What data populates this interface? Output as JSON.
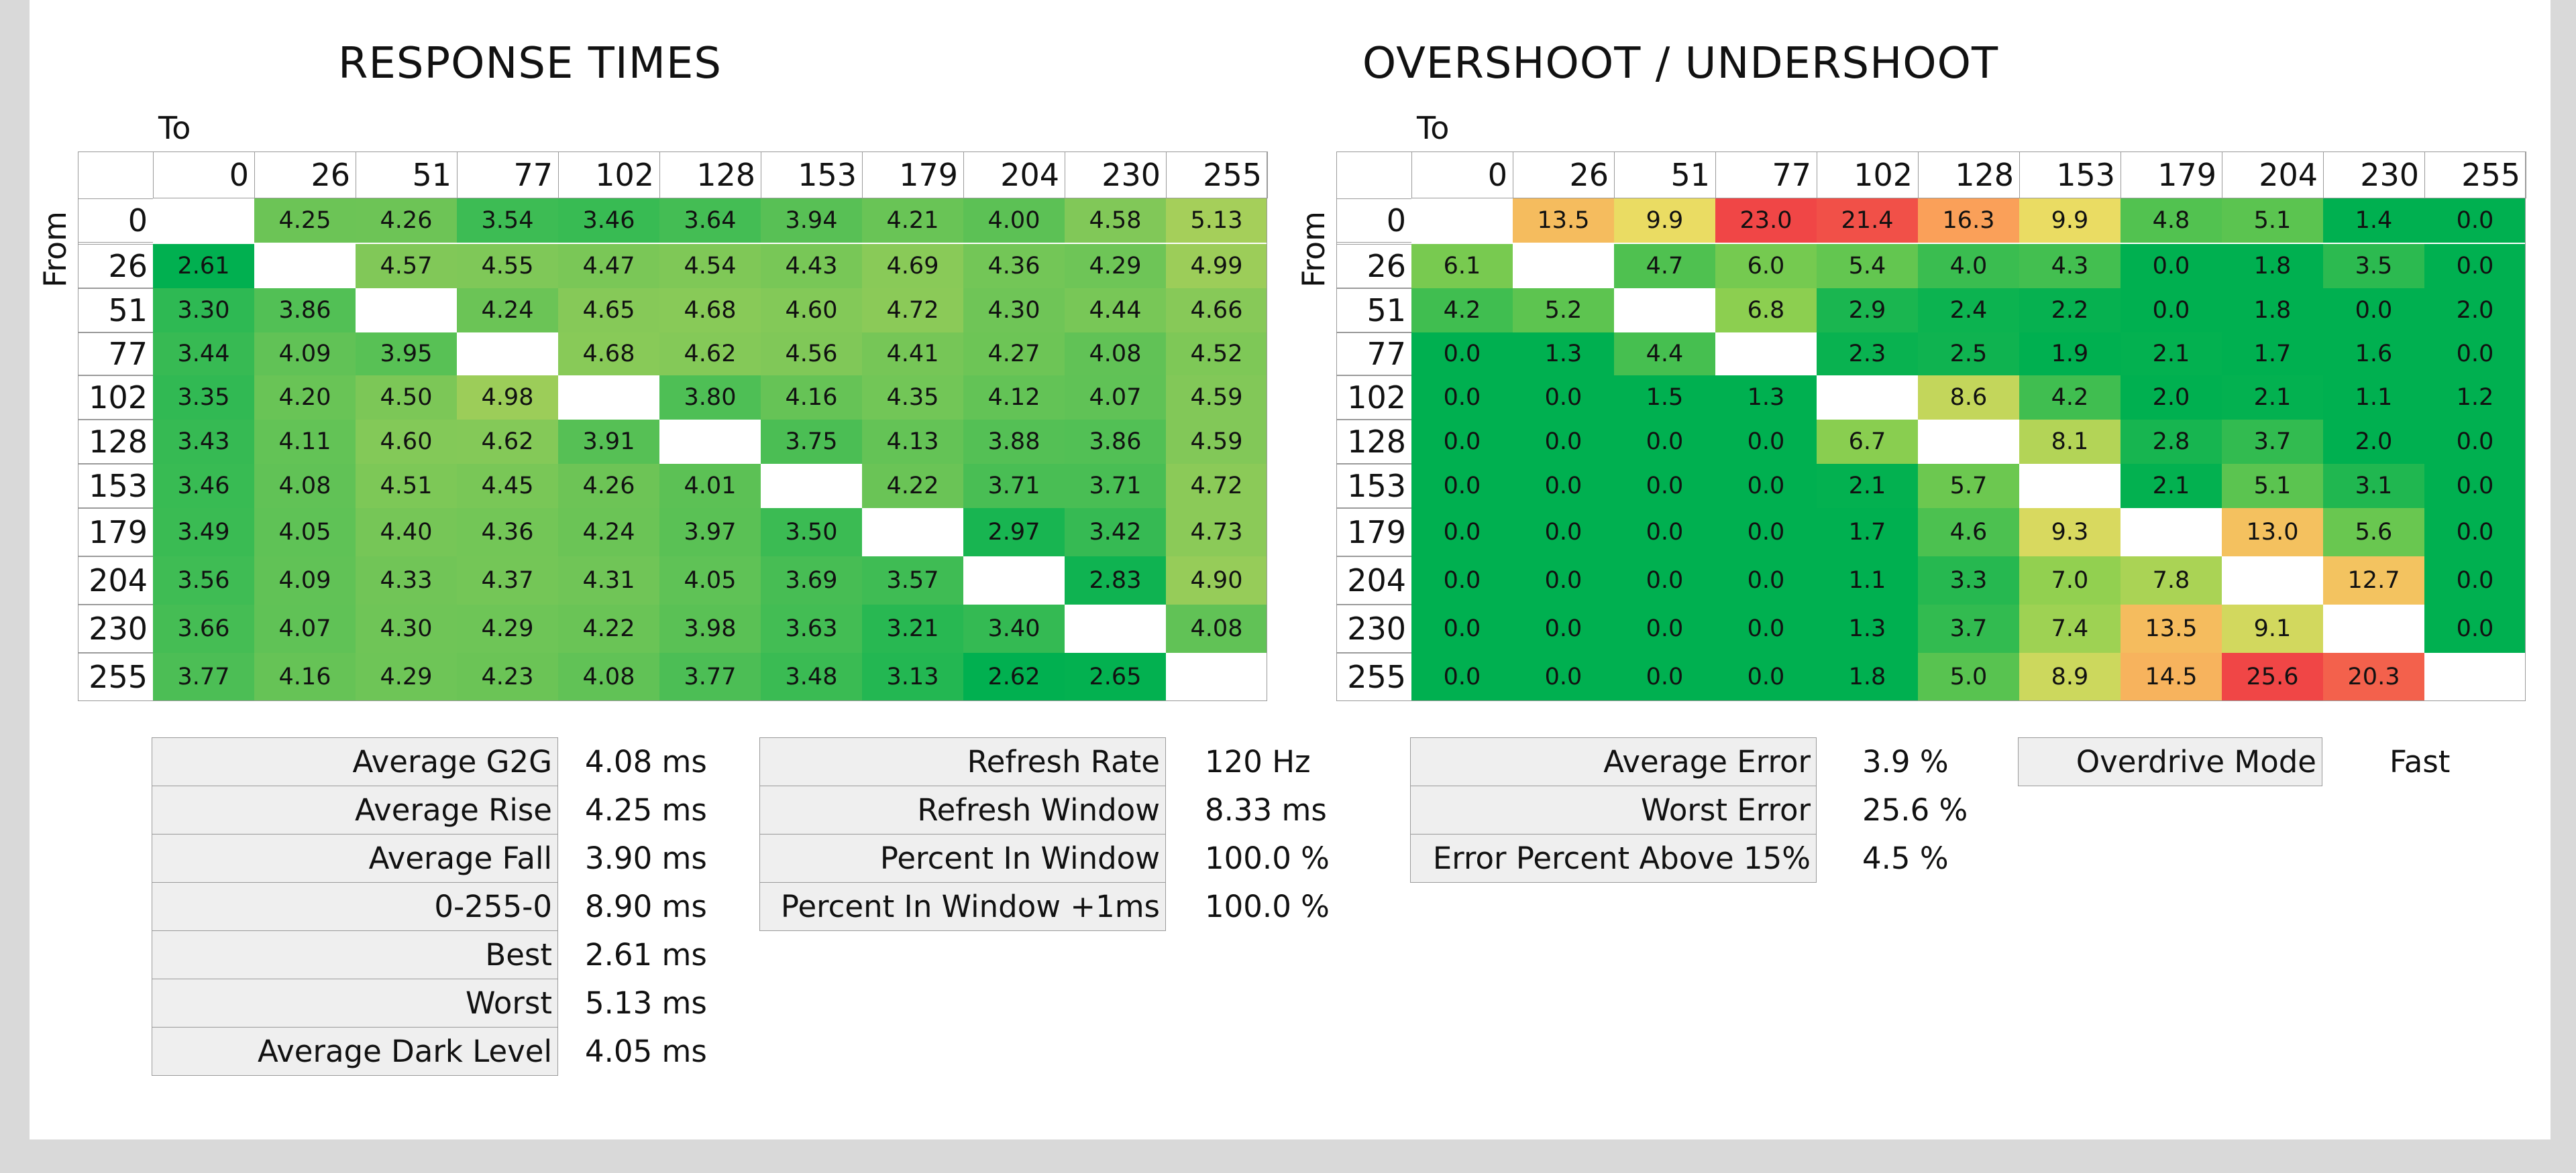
{
  "chart_data": [
    {
      "type": "heatmap",
      "title": "RESPONSE TIMES",
      "xlabel": "To",
      "ylabel": "From",
      "x": [
        "0",
        "26",
        "51",
        "77",
        "102",
        "128",
        "153",
        "179",
        "204",
        "230",
        "255"
      ],
      "y": [
        "0",
        "26",
        "51",
        "77",
        "102",
        "128",
        "153",
        "179",
        "204",
        "230",
        "255"
      ],
      "values": [
        [
          null,
          "4.25",
          "4.26",
          "3.54",
          "3.46",
          "3.64",
          "3.94",
          "4.21",
          "4.00",
          "4.58",
          "5.13"
        ],
        [
          "2.61",
          null,
          "4.57",
          "4.55",
          "4.47",
          "4.54",
          "4.43",
          "4.69",
          "4.36",
          "4.29",
          "4.99"
        ],
        [
          "3.30",
          "3.86",
          null,
          "4.24",
          "4.65",
          "4.68",
          "4.60",
          "4.72",
          "4.30",
          "4.44",
          "4.66"
        ],
        [
          "3.44",
          "4.09",
          "3.95",
          null,
          "4.68",
          "4.62",
          "4.56",
          "4.41",
          "4.27",
          "4.08",
          "4.52"
        ],
        [
          "3.35",
          "4.20",
          "4.50",
          "4.98",
          null,
          "3.80",
          "4.16",
          "4.35",
          "4.12",
          "4.07",
          "4.59"
        ],
        [
          "3.43",
          "4.11",
          "4.60",
          "4.62",
          "3.91",
          null,
          "3.75",
          "4.13",
          "3.88",
          "3.86",
          "4.59"
        ],
        [
          "3.46",
          "4.08",
          "4.51",
          "4.45",
          "4.26",
          "4.01",
          null,
          "4.22",
          "3.71",
          "3.71",
          "4.72"
        ],
        [
          "3.49",
          "4.05",
          "4.40",
          "4.36",
          "4.24",
          "3.97",
          "3.50",
          null,
          "2.97",
          "3.42",
          "4.73"
        ],
        [
          "3.56",
          "4.09",
          "4.33",
          "4.37",
          "4.31",
          "4.05",
          "3.69",
          "3.57",
          null,
          "2.83",
          "4.90"
        ],
        [
          "3.66",
          "4.07",
          "4.30",
          "4.29",
          "4.22",
          "3.98",
          "3.63",
          "3.21",
          "3.40",
          null,
          "4.08"
        ],
        [
          "3.77",
          "4.16",
          "4.29",
          "4.23",
          "4.08",
          "3.77",
          "3.48",
          "3.13",
          "2.62",
          "2.65",
          null
        ]
      ],
      "stats": [
        {
          "label": "Average G2G",
          "value": "4.08 ms"
        },
        {
          "label": "Average Rise",
          "value": "4.25 ms"
        },
        {
          "label": "Average Fall",
          "value": "3.90 ms"
        },
        {
          "label": "0-255-0",
          "value": "8.90 ms"
        },
        {
          "label": "Best",
          "value": "2.61 ms"
        },
        {
          "label": "Worst",
          "value": "5.13 ms"
        },
        {
          "label": "Average Dark Level",
          "value": "4.05 ms"
        }
      ],
      "info": [
        {
          "label": "Refresh Rate",
          "value": "120 Hz"
        },
        {
          "label": "Refresh Window",
          "value": "8.33 ms"
        },
        {
          "label": "Percent In Window",
          "value": "100.0 %"
        },
        {
          "label": "Percent In Window +1ms",
          "value": "100.0 %"
        }
      ]
    },
    {
      "type": "heatmap",
      "title": "OVERSHOOT / UNDERSHOOT",
      "xlabel": "To",
      "ylabel": "From",
      "x": [
        "0",
        "26",
        "51",
        "77",
        "102",
        "128",
        "153",
        "179",
        "204",
        "230",
        "255"
      ],
      "y": [
        "0",
        "26",
        "51",
        "77",
        "102",
        "128",
        "153",
        "179",
        "204",
        "230",
        "255"
      ],
      "values": [
        [
          null,
          "13.5",
          "9.9",
          "23.0",
          "21.4",
          "16.3",
          "9.9",
          "4.8",
          "5.1",
          "1.4",
          "0.0"
        ],
        [
          "6.1",
          null,
          "4.7",
          "6.0",
          "5.4",
          "4.0",
          "4.3",
          "0.0",
          "1.8",
          "3.5",
          "0.0"
        ],
        [
          "4.2",
          "5.2",
          null,
          "6.8",
          "2.9",
          "2.4",
          "2.2",
          "0.0",
          "1.8",
          "0.0",
          "2.0"
        ],
        [
          "0.0",
          "1.3",
          "4.4",
          null,
          "2.3",
          "2.5",
          "1.9",
          "2.1",
          "1.7",
          "1.6",
          "0.0"
        ],
        [
          "0.0",
          "0.0",
          "1.5",
          "1.3",
          null,
          "8.6",
          "4.2",
          "2.0",
          "2.1",
          "1.1",
          "1.2"
        ],
        [
          "0.0",
          "0.0",
          "0.0",
          "0.0",
          "6.7",
          null,
          "8.1",
          "2.8",
          "3.7",
          "2.0",
          "0.0"
        ],
        [
          "0.0",
          "0.0",
          "0.0",
          "0.0",
          "2.1",
          "5.7",
          null,
          "2.1",
          "5.1",
          "3.1",
          "0.0"
        ],
        [
          "0.0",
          "0.0",
          "0.0",
          "0.0",
          "1.7",
          "4.6",
          "9.3",
          null,
          "13.0",
          "5.6",
          "0.0"
        ],
        [
          "0.0",
          "0.0",
          "0.0",
          "0.0",
          "1.1",
          "3.3",
          "7.0",
          "7.8",
          null,
          "12.7",
          "0.0"
        ],
        [
          "0.0",
          "0.0",
          "0.0",
          "0.0",
          "1.3",
          "3.7",
          "7.4",
          "13.5",
          "9.1",
          null,
          "0.0"
        ],
        [
          "0.0",
          "0.0",
          "0.0",
          "0.0",
          "1.8",
          "5.0",
          "8.9",
          "14.5",
          "25.6",
          "20.3",
          null
        ]
      ],
      "stats": [
        {
          "label": "Average Error",
          "value": "3.9 %"
        },
        {
          "label": "Worst Error",
          "value": "25.6 %"
        },
        {
          "label": "Error Percent Above 15%",
          "value": "4.5 %"
        }
      ],
      "info": [
        {
          "label": "Overdrive Mode",
          "value": "Fast"
        }
      ]
    }
  ]
}
